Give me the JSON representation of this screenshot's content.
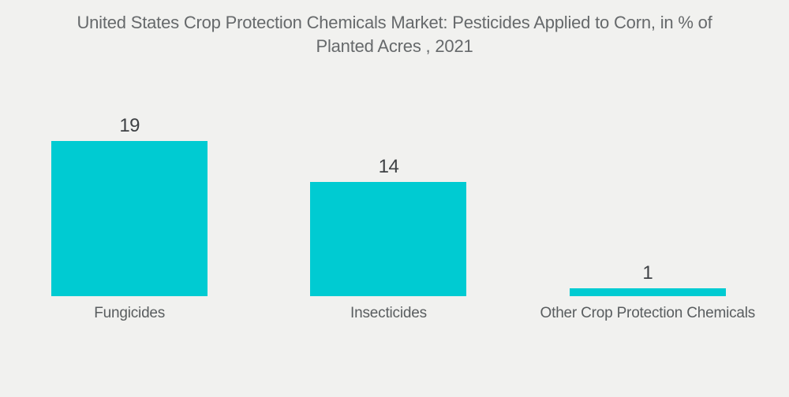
{
  "title_lines": [
    "United States Crop Protection Chemicals Market: Pesticides Applied to Corn, in % of",
    "Planted Acres , 2021"
  ],
  "colors": {
    "background": "#F1F1EF",
    "bar": "#00CBD2",
    "title_text": "#66696B",
    "value_text": "#3E4144",
    "category_text": "#595D5F"
  },
  "chart_data": {
    "type": "bar",
    "title": "United States Crop Protection Chemicals Market: Pesticides Applied to Corn, in % of Planted Acres , 2021",
    "categories": [
      "Fungicides",
      "Insecticides",
      "Other Crop Protection Chemicals"
    ],
    "values": [
      19,
      14,
      1
    ],
    "xlabel": "",
    "ylabel": "",
    "ylim": [
      0,
      19
    ],
    "grid": false,
    "legend": false,
    "orientation": "vertical",
    "value_labels_shown": true,
    "axis_shown": false
  }
}
